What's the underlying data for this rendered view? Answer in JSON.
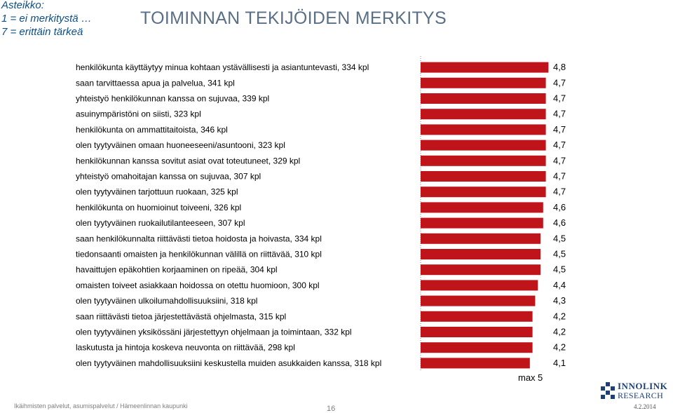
{
  "scale_note": {
    "line1": "Asteikko:",
    "line2": "1 = ei merkitystä …",
    "line3": "7 = erittäin tärkeä"
  },
  "title": "TOIMINNAN TEKIJÖIDEN MERKITYS",
  "colors": {
    "bar": "#c0141b",
    "title": "#5a6f86",
    "note": "#0b4f8a"
  },
  "chart_data": {
    "type": "bar",
    "orientation": "horizontal",
    "xlim": [
      0,
      5
    ],
    "categories": [
      "henkilökunta käyttäytyy minua kohtaan ystävällisesti ja asiantuntevasti, 334 kpl",
      "saan tarvittaessa apua ja palvelua, 341 kpl",
      "yhteistyö henkilökunnan kanssa on sujuvaa, 339 kpl",
      "asuinympäristöni on siisti, 323 kpl",
      "henkilökunta on ammattitaitoista, 346 kpl",
      "olen tyytyväinen omaan huoneeseeni/asuntooni, 323 kpl",
      "henkilökunnan kanssa sovitut asiat ovat toteutuneet, 329 kpl",
      "yhteistyö omahoitajan kanssa on sujuvaa, 307 kpl",
      "olen tyytyväinen tarjottuun ruokaan, 325 kpl",
      "henkilökunta on huomioinut toiveeni, 326 kpl",
      "olen tyytyväinen ruokailutilanteeseen, 307 kpl",
      "saan henkilökunnalta riittävästi tietoa hoidosta ja hoivasta, 334 kpl",
      "tiedonsaanti omaisten ja henkilökunnan välillä on riittävää, 310 kpl",
      "havaittujen epäkohtien korjaaminen on ripeää, 304 kpl",
      "omaisten toiveet asiakkaan hoidossa on otettu huomioon, 300 kpl",
      "olen tyytyväinen ulkoilumahdollisuuksiini, 318 kpl",
      "saan riittävästi tietoa järjestettävästä ohjelmasta, 315 kpl",
      "olen tyytyväinen yksikössäni järjestettyyn ohjelmaan ja toimintaan, 332 kpl",
      "laskutusta ja hintoja koskeva neuvonta on riittävää, 298 kpl",
      "olen tyytyväinen mahdollisuuksiini keskustella muiden asukkaiden kanssa, 318 kpl"
    ],
    "values": [
      4.8,
      4.7,
      4.7,
      4.7,
      4.7,
      4.7,
      4.7,
      4.7,
      4.7,
      4.6,
      4.6,
      4.5,
      4.5,
      4.5,
      4.4,
      4.3,
      4.2,
      4.2,
      4.2,
      4.1
    ],
    "value_labels": [
      "4,8",
      "4,7",
      "4,7",
      "4,7",
      "4,7",
      "4,7",
      "4,7",
      "4,7",
      "4,7",
      "4,6",
      "4,6",
      "4,5",
      "4,5",
      "4,5",
      "4,4",
      "4,3",
      "4,2",
      "4,2",
      "4,2",
      "4,1"
    ],
    "max_label": "max",
    "max_value": "5"
  },
  "footer": {
    "left": "Ikäihmisten palvelut, asumispalvelut / Hämeenlinnan kaupunki",
    "page": "16",
    "date": "4.2.2014"
  },
  "logo": {
    "line1": "INNOLINK",
    "line2": "RESEARCH"
  }
}
